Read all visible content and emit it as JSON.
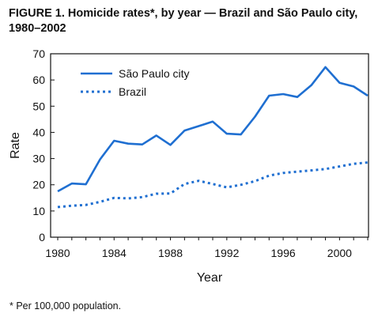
{
  "figure": {
    "title": "FIGURE 1. Homicide rates*, by year — Brazil and São Paulo city, 1980–2002",
    "footnote": "* Per 100,000 population."
  },
  "colors": {
    "line": "#1f6fd1",
    "axis": "#111111",
    "text": "#111111"
  },
  "chart_data": {
    "type": "line",
    "xlabel": "Year",
    "ylabel": "Rate",
    "xlim": [
      1980,
      2002
    ],
    "ylim": [
      0,
      70
    ],
    "x_ticks": [
      1980,
      1984,
      1988,
      1992,
      1996,
      2000
    ],
    "y_ticks": [
      0,
      10,
      20,
      30,
      40,
      50,
      60,
      70
    ],
    "grid": false,
    "legend_position": "top-left",
    "x": [
      1980,
      1981,
      1982,
      1983,
      1984,
      1985,
      1986,
      1987,
      1988,
      1989,
      1990,
      1991,
      1992,
      1993,
      1994,
      1995,
      1996,
      1997,
      1998,
      1999,
      2000,
      2001,
      2002
    ],
    "series": [
      {
        "name": "São Paulo city",
        "style": "solid",
        "values": [
          17.5,
          20.5,
          20.2,
          29.7,
          36.8,
          35.7,
          35.4,
          38.8,
          35.2,
          40.7,
          42.4,
          44.1,
          39.5,
          39.2,
          46.0,
          54.0,
          54.6,
          53.5,
          58.0,
          64.9,
          58.9,
          57.5,
          54.0
        ]
      },
      {
        "name": "Brazil",
        "style": "dotted",
        "values": [
          11.5,
          12.0,
          12.3,
          13.5,
          15.0,
          14.8,
          15.3,
          16.6,
          16.7,
          20.3,
          21.5,
          20.3,
          19.0,
          20.0,
          21.4,
          23.5,
          24.5,
          25.0,
          25.5,
          26.0,
          27.0,
          28.0,
          28.5
        ]
      }
    ]
  }
}
